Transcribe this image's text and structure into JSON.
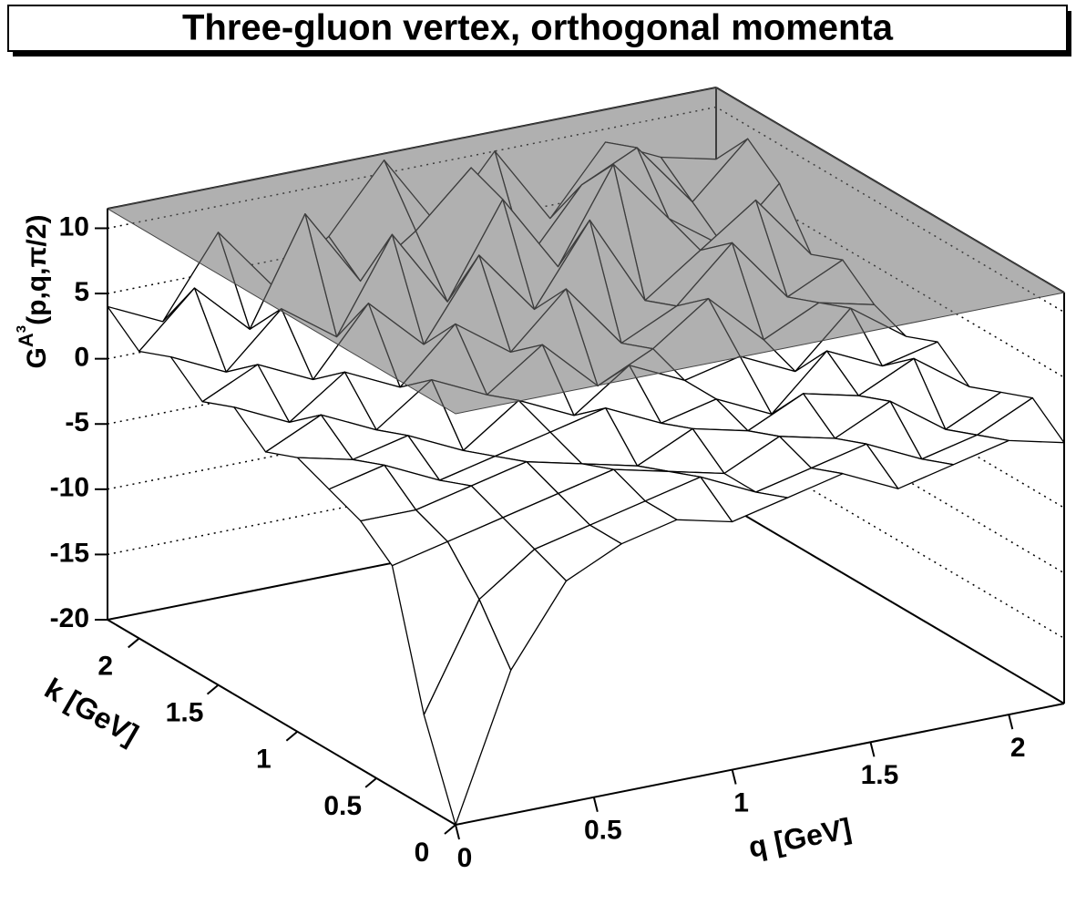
{
  "chart_data": {
    "type": "surface",
    "title": "Three-gluon vertex, orthogonal momenta",
    "xlabel": "q [GeV]",
    "ylabel": "k [GeV]",
    "zlabel": [
      "G",
      "A",
      "3",
      "(p,q,π/2)"
    ],
    "x": [
      0,
      0.2,
      0.4,
      0.6,
      0.8,
      1.0,
      1.2,
      1.4,
      1.6,
      1.8,
      2.0,
      2.2
    ],
    "y": [
      0,
      0.2,
      0.4,
      0.6,
      0.8,
      1.0,
      1.2,
      1.4,
      1.6,
      1.8,
      2.0,
      2.2
    ],
    "z": [
      [
        -20,
        -9,
        -3,
        -1,
        0,
        -1,
        0,
        1,
        -1,
        0,
        1,
        0
      ],
      [
        -13,
        -5,
        -2,
        -1,
        0,
        1,
        -1,
        0,
        1,
        -1,
        0,
        2
      ],
      [
        -3,
        -2,
        -1,
        0,
        1,
        0,
        -1,
        1,
        0,
        2,
        -1,
        1
      ],
      [
        -1,
        -1,
        0,
        1,
        0,
        -1,
        1,
        0,
        2,
        1,
        3,
        0
      ],
      [
        0,
        1,
        -1,
        0,
        1,
        2,
        0,
        1,
        -1,
        3,
        1,
        2
      ],
      [
        1,
        0,
        1,
        -1,
        2,
        0,
        3,
        1,
        2,
        0,
        4,
        1
      ],
      [
        0,
        2,
        0,
        3,
        1,
        4,
        0,
        2,
        5,
        1,
        3,
        2
      ],
      [
        2,
        0,
        3,
        1,
        5,
        2,
        6,
        1,
        3,
        7,
        2,
        4
      ],
      [
        1,
        3,
        1,
        6,
        2,
        8,
        3,
        9,
        2,
        5,
        8,
        3
      ],
      [
        3,
        1,
        5,
        2,
        9,
        3,
        10,
        4,
        11,
        6,
        3,
        7
      ],
      [
        2,
        6,
        2,
        10,
        4,
        7,
        11,
        3,
        8,
        10,
        5,
        9
      ],
      [
        4,
        2,
        8,
        3,
        6,
        11,
        5,
        10,
        4,
        9,
        7,
        6
      ]
    ],
    "xlim": [
      0,
      2.2
    ],
    "ylim": [
      0,
      2.2
    ],
    "zlim": [
      -20,
      11.5
    ],
    "xticks": [
      0,
      0.5,
      1,
      1.5,
      2
    ],
    "yticks": [
      0,
      0.5,
      1,
      1.5,
      2
    ],
    "zticks": [
      -20,
      -15,
      -10,
      -5,
      0,
      5,
      10
    ],
    "grid": true,
    "color": "#ffffff",
    "top_color": "#707070"
  }
}
